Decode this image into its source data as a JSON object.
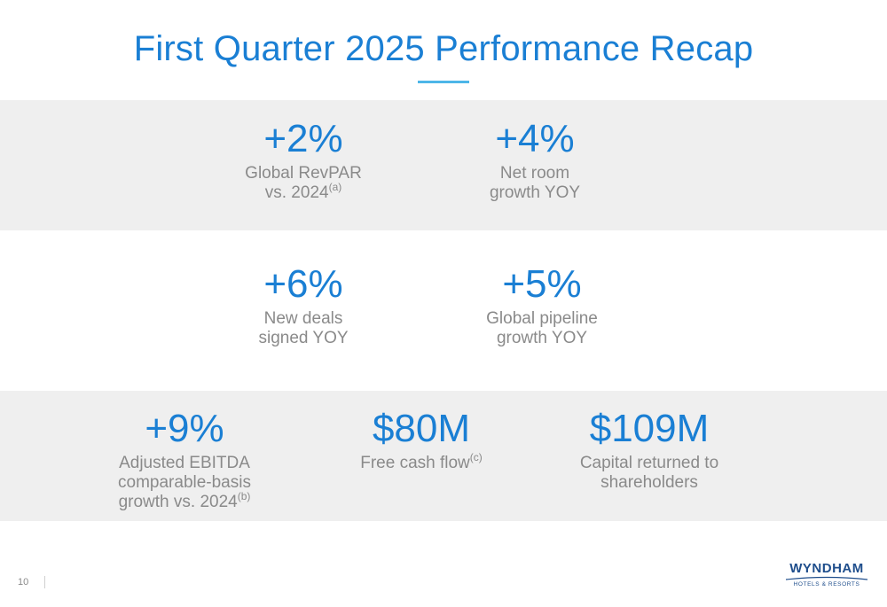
{
  "slide": {
    "title": "First Quarter 2025 Performance Recap",
    "page_number": "10"
  },
  "metrics": [
    {
      "value": "+2%",
      "label_lines": [
        "Global RevPAR",
        "vs. 2024"
      ],
      "footnote": "(a)"
    },
    {
      "value": "+4%",
      "label_lines": [
        "Net room",
        "growth YOY"
      ],
      "footnote": ""
    },
    {
      "value": "+6%",
      "label_lines": [
        "New deals",
        "signed YOY"
      ],
      "footnote": ""
    },
    {
      "value": "+5%",
      "label_lines": [
        "Global pipeline",
        "growth YOY"
      ],
      "footnote": ""
    },
    {
      "value": "+9%",
      "label_lines": [
        "Adjusted EBITDA",
        "comparable-basis",
        "growth vs. 2024"
      ],
      "footnote": "(b)"
    },
    {
      "value": "$80M",
      "label_lines": [
        "Free cash flow"
      ],
      "footnote": "(c)"
    },
    {
      "value": "$109M",
      "label_lines": [
        "Capital returned to",
        "shareholders"
      ],
      "footnote": ""
    }
  ],
  "logo": {
    "name": "WYNDHAM",
    "tagline": "HOTELS & RESORTS"
  },
  "colors": {
    "accent": "#1a7fd4",
    "rule": "#4db6e8",
    "label_grey": "#8a8a8a",
    "band_grey": "#efefef",
    "logo_navy": "#1f4e8c"
  }
}
